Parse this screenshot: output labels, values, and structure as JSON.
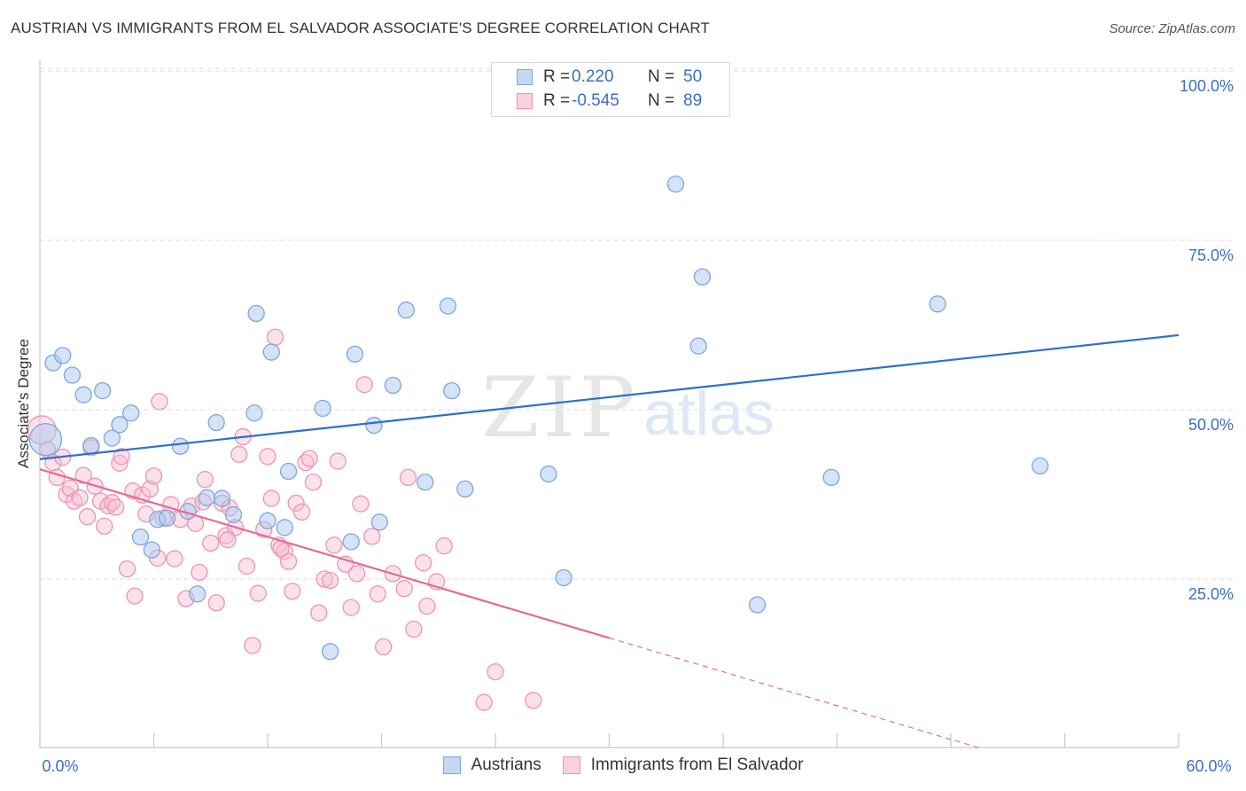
{
  "title": "AUSTRIAN VS IMMIGRANTS FROM EL SALVADOR ASSOCIATE'S DEGREE CORRELATION CHART",
  "source": "Source: ZipAtlas.com",
  "watermark": {
    "zip": "ZIP",
    "atlas": "atlas"
  },
  "colors": {
    "blue_fill": "#aac8ef",
    "blue_stroke": "#7ea6dc",
    "blue_line": "#2f6fcc",
    "pink_fill": "#f6bfd0",
    "pink_stroke": "#ee93b2",
    "pink_line": "#e46a97",
    "axis_text": "#3a6fc4",
    "grid": "#dddddd"
  },
  "legend_top": {
    "rows": [
      {
        "r_label": "R =",
        "r_value": "0.220",
        "n_label": "N =",
        "n_value": "50"
      },
      {
        "r_label": "R =",
        "r_value": "-0.545",
        "n_label": "N =",
        "n_value": "89"
      }
    ]
  },
  "legend_bottom": {
    "items": [
      "Austrians",
      "Immigrants from El Salvador"
    ]
  },
  "chart_data": {
    "type": "scatter",
    "title": "AUSTRIAN VS IMMIGRANTS FROM EL SALVADOR ASSOCIATE'S DEGREE CORRELATION CHART",
    "xlabel": "",
    "ylabel": "Associate's Degree",
    "xlim": [
      0,
      60
    ],
    "ylim": [
      0,
      102
    ],
    "x_tick_labels": [
      "0.0%",
      "60.0%"
    ],
    "y_ticks": [
      25,
      50,
      75,
      100
    ],
    "y_tick_labels": [
      "25.0%",
      "50.0%",
      "75.0%",
      "100.0%"
    ],
    "grid": true,
    "legend": "bottom-center",
    "series": [
      {
        "name": "Austrians",
        "r": 0.22,
        "n": 50,
        "trend": {
          "x": [
            0,
            60
          ],
          "y": [
            42.7,
            61.0
          ]
        },
        "points": [
          [
            0.3,
            45.6
          ],
          [
            0.7,
            56.9
          ],
          [
            1.2,
            58.0
          ],
          [
            1.7,
            55.1
          ],
          [
            2.3,
            52.2
          ],
          [
            3.3,
            52.8
          ],
          [
            2.7,
            44.7
          ],
          [
            3.8,
            45.8
          ],
          [
            4.2,
            47.8
          ],
          [
            4.8,
            49.5
          ],
          [
            5.3,
            31.2
          ],
          [
            5.9,
            29.3
          ],
          [
            6.2,
            33.8
          ],
          [
            6.7,
            34.0
          ],
          [
            7.4,
            44.6
          ],
          [
            7.8,
            35.0
          ],
          [
            8.3,
            22.8
          ],
          [
            8.8,
            37.0
          ],
          [
            9.3,
            48.1
          ],
          [
            9.6,
            36.9
          ],
          [
            10.2,
            34.5
          ],
          [
            11.3,
            49.5
          ],
          [
            11.4,
            64.2
          ],
          [
            12.0,
            33.6
          ],
          [
            12.2,
            58.5
          ],
          [
            12.9,
            32.6
          ],
          [
            13.1,
            40.9
          ],
          [
            14.9,
            50.2
          ],
          [
            15.3,
            14.3
          ],
          [
            16.4,
            30.5
          ],
          [
            16.6,
            58.2
          ],
          [
            17.6,
            47.7
          ],
          [
            17.9,
            33.4
          ],
          [
            18.6,
            53.6
          ],
          [
            19.3,
            64.7
          ],
          [
            20.3,
            39.3
          ],
          [
            21.5,
            65.3
          ],
          [
            21.7,
            52.8
          ],
          [
            22.4,
            38.3
          ],
          [
            26.0,
            100.0
          ],
          [
            26.8,
            40.5
          ],
          [
            27.6,
            25.2
          ],
          [
            29.7,
            100.0
          ],
          [
            33.5,
            83.3
          ],
          [
            34.7,
            59.4
          ],
          [
            34.9,
            69.6
          ],
          [
            37.8,
            21.2
          ],
          [
            41.7,
            40.0
          ],
          [
            47.3,
            65.6
          ],
          [
            52.7,
            41.7
          ]
        ]
      },
      {
        "name": "Immigrants from El Salvador",
        "r": -0.545,
        "n": 89,
        "trend": {
          "x": [
            0,
            30
          ],
          "y": [
            41.2,
            16.3
          ]
        },
        "trend_dashed": {
          "x": [
            30,
            49.6
          ],
          "y": [
            16.3,
            0
          ]
        },
        "points": [
          [
            0.1,
            47.0
          ],
          [
            0.4,
            44.1
          ],
          [
            0.7,
            42.2
          ],
          [
            0.9,
            40.0
          ],
          [
            1.2,
            43.0
          ],
          [
            1.4,
            37.5
          ],
          [
            1.6,
            38.4
          ],
          [
            1.8,
            36.5
          ],
          [
            2.1,
            37.0
          ],
          [
            2.3,
            40.3
          ],
          [
            2.5,
            34.2
          ],
          [
            2.7,
            44.4
          ],
          [
            2.9,
            38.7
          ],
          [
            3.2,
            36.5
          ],
          [
            3.4,
            32.8
          ],
          [
            3.6,
            35.8
          ],
          [
            3.8,
            36.3
          ],
          [
            4.0,
            35.6
          ],
          [
            4.2,
            42.1
          ],
          [
            4.3,
            43.1
          ],
          [
            4.6,
            26.5
          ],
          [
            4.9,
            38.0
          ],
          [
            5.0,
            22.5
          ],
          [
            5.4,
            37.4
          ],
          [
            5.6,
            34.6
          ],
          [
            5.8,
            38.3
          ],
          [
            6.0,
            40.2
          ],
          [
            6.2,
            28.1
          ],
          [
            6.5,
            34.0
          ],
          [
            6.9,
            36.0
          ],
          [
            7.1,
            28.0
          ],
          [
            7.4,
            33.8
          ],
          [
            7.7,
            22.1
          ],
          [
            8.0,
            35.8
          ],
          [
            8.2,
            33.2
          ],
          [
            8.4,
            26.0
          ],
          [
            8.7,
            39.7
          ],
          [
            9.0,
            30.3
          ],
          [
            9.3,
            21.5
          ],
          [
            9.6,
            36.2
          ],
          [
            9.8,
            31.4
          ],
          [
            10.0,
            35.5
          ],
          [
            10.3,
            32.6
          ],
          [
            10.5,
            43.4
          ],
          [
            10.7,
            46.0
          ],
          [
            10.9,
            26.9
          ],
          [
            11.2,
            15.2
          ],
          [
            11.5,
            22.9
          ],
          [
            11.8,
            32.3
          ],
          [
            12.0,
            43.1
          ],
          [
            12.2,
            36.9
          ],
          [
            12.4,
            60.7
          ],
          [
            12.6,
            30.0
          ],
          [
            12.9,
            29.1
          ],
          [
            13.1,
            27.6
          ],
          [
            13.3,
            23.2
          ],
          [
            13.5,
            36.2
          ],
          [
            13.8,
            34.9
          ],
          [
            14.0,
            42.2
          ],
          [
            14.2,
            42.8
          ],
          [
            14.4,
            39.3
          ],
          [
            14.7,
            20.0
          ],
          [
            15.0,
            25.0
          ],
          [
            15.3,
            24.8
          ],
          [
            15.5,
            30.0
          ],
          [
            15.7,
            42.4
          ],
          [
            16.1,
            27.2
          ],
          [
            16.4,
            20.8
          ],
          [
            16.7,
            25.8
          ],
          [
            16.9,
            36.1
          ],
          [
            17.1,
            53.7
          ],
          [
            17.5,
            31.3
          ],
          [
            17.8,
            22.8
          ],
          [
            18.1,
            15.0
          ],
          [
            18.6,
            25.8
          ],
          [
            19.2,
            23.6
          ],
          [
            19.4,
            40.0
          ],
          [
            19.7,
            17.6
          ],
          [
            20.2,
            27.4
          ],
          [
            20.4,
            21.0
          ],
          [
            20.9,
            24.6
          ],
          [
            21.3,
            29.9
          ],
          [
            23.4,
            6.8
          ],
          [
            24.0,
            11.3
          ],
          [
            26.0,
            7.1
          ],
          [
            6.3,
            51.2
          ],
          [
            9.9,
            30.8
          ],
          [
            12.7,
            29.5
          ],
          [
            8.6,
            36.4
          ]
        ]
      }
    ]
  }
}
